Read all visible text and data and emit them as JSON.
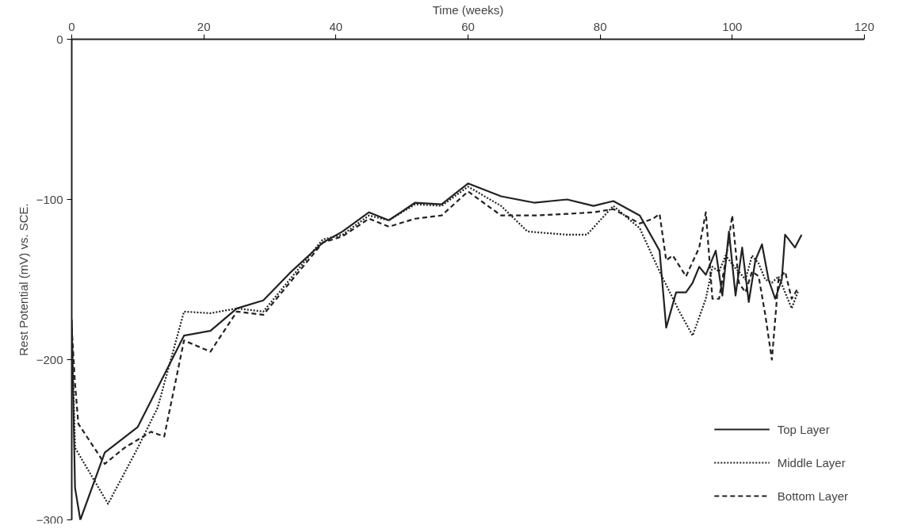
{
  "chart_data": {
    "type": "line",
    "xlabel": "Time (weeks)",
    "ylabel": "Rest Potential (mV) vs. SCE.",
    "xlim": [
      0,
      120
    ],
    "xticks": [
      0,
      20,
      40,
      60,
      80,
      100,
      120
    ],
    "ylim": [
      -300,
      0
    ],
    "yticks": [
      0,
      -100,
      -200,
      -300
    ],
    "grid": false,
    "legend": "bottom right",
    "marker": "none",
    "series": [
      {
        "name": "Top Layer",
        "color": "#222222",
        "line_style": "solid",
        "x": [
          0,
          0.5,
          1.3,
          5,
          10,
          17,
          21,
          25,
          29,
          33,
          38,
          41,
          45,
          48,
          52,
          56,
          60,
          65,
          70,
          75,
          79,
          82,
          86,
          89,
          90,
          91.5,
          93,
          94,
          95,
          96,
          97.5,
          98.5,
          99.5,
          100.5,
          101.5,
          102.5,
          103.5,
          104.5,
          105.5,
          106.5,
          107.5,
          108,
          109.5,
          110.5
        ],
        "values": [
          -175,
          -280,
          -300,
          -258,
          -242,
          -185,
          -182,
          -168,
          -163,
          -146,
          -127,
          -120,
          -108,
          -113,
          -102,
          -103,
          -90,
          -98,
          -102,
          -100,
          -104,
          -101,
          -110,
          -132,
          -180,
          -158,
          -158,
          -152,
          -142,
          -147,
          -132,
          -160,
          -120,
          -160,
          -130,
          -164,
          -138,
          -128,
          -150,
          -162,
          -150,
          -122,
          -130,
          -122
        ]
      },
      {
        "name": "Middle Layer",
        "color": "#222222",
        "line_style": "dotted",
        "x": [
          0,
          0.5,
          5.5,
          10,
          13,
          17,
          21,
          25,
          29,
          33,
          38,
          41,
          45,
          48,
          52,
          56,
          60,
          65,
          69,
          75,
          78,
          82,
          86,
          89,
          92,
          94,
          96,
          97,
          98,
          99,
          100.5,
          101,
          102,
          103,
          104,
          105,
          106,
          107,
          108,
          109,
          110
        ],
        "values": [
          -180,
          -255,
          -290,
          -255,
          -230,
          -170,
          -171,
          -168,
          -170,
          -150,
          -125,
          -122,
          -110,
          -113,
          -103,
          -104,
          -92,
          -104,
          -120,
          -122,
          -122,
          -104,
          -118,
          -145,
          -170,
          -185,
          -162,
          -142,
          -145,
          -135,
          -143,
          -145,
          -150,
          -135,
          -140,
          -150,
          -152,
          -148,
          -158,
          -168,
          -157
        ]
      },
      {
        "name": "Bottom Layer",
        "color": "#222222",
        "line_style": "dashed",
        "x": [
          0,
          0.5,
          1,
          5,
          8,
          12,
          14,
          17,
          21,
          25,
          29,
          33,
          38,
          41,
          45,
          48,
          52,
          56,
          60,
          65,
          70,
          75,
          79,
          82,
          86,
          88,
          89,
          90,
          91,
          93,
          95,
          96,
          97,
          98,
          99,
          100,
          101,
          102,
          103,
          104,
          105,
          106,
          107,
          108,
          109,
          110
        ],
        "values": [
          -180,
          -215,
          -240,
          -265,
          -255,
          -245,
          -248,
          -188,
          -195,
          -170,
          -172,
          -152,
          -127,
          -123,
          -112,
          -117,
          -112,
          -110,
          -95,
          -110,
          -110,
          -109,
          -108,
          -106,
          -115,
          -112,
          -109,
          -138,
          -135,
          -148,
          -130,
          -108,
          -162,
          -162,
          -138,
          -110,
          -152,
          -158,
          -145,
          -148,
          -172,
          -200,
          -150,
          -145,
          -162,
          -155
        ]
      }
    ]
  }
}
